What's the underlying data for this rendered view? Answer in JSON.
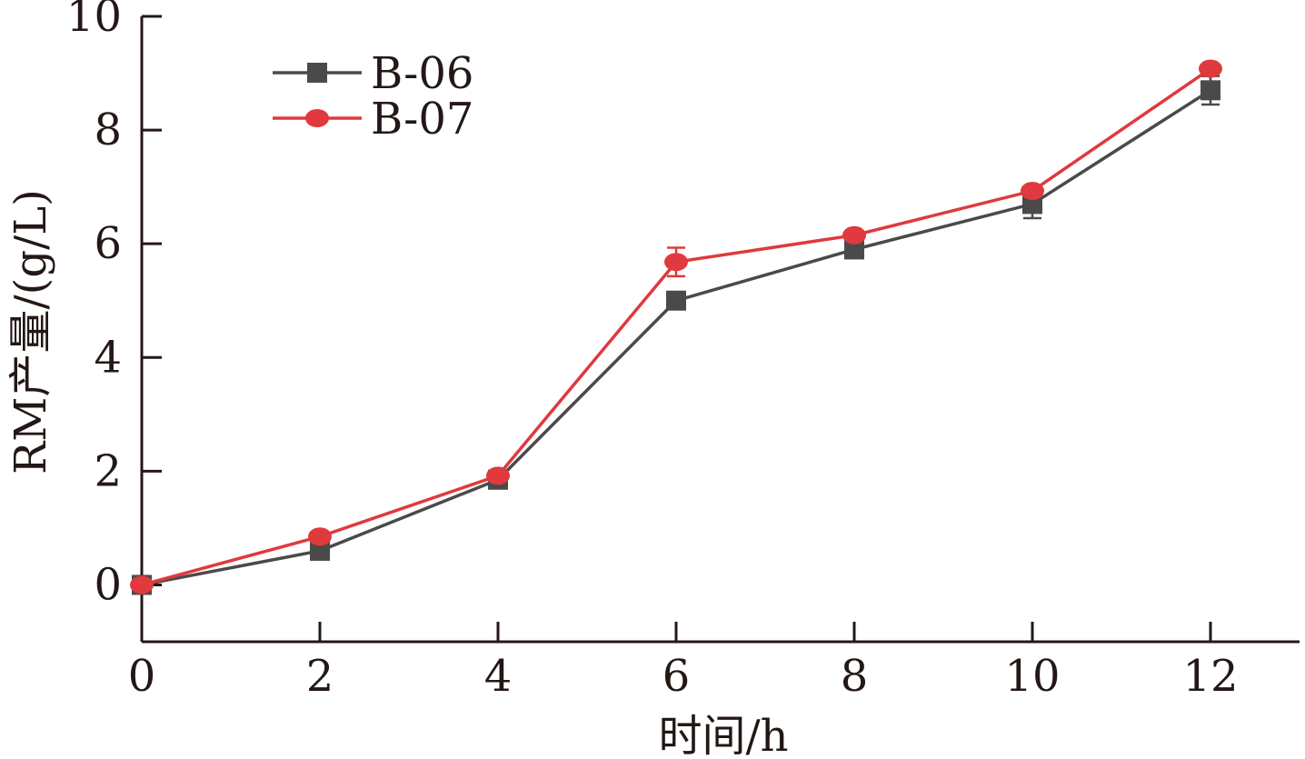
{
  "chart_data": {
    "type": "line",
    "title": "",
    "xlabel": "时间/h",
    "ylabel": "RM产量/(g/L)",
    "xlim": [
      0,
      13
    ],
    "ylim": [
      -1,
      10
    ],
    "x_ticks": [
      0,
      2,
      4,
      6,
      8,
      10,
      12
    ],
    "y_ticks": [
      0,
      2,
      4,
      6,
      8,
      10
    ],
    "grid": false,
    "legend_position": "top-left",
    "series": [
      {
        "name": "B-06",
        "color": "#4a4a4a",
        "marker": "square",
        "x": [
          0,
          2,
          4,
          6,
          8,
          10,
          12
        ],
        "y": [
          0,
          0.6,
          1.85,
          5.0,
          5.9,
          6.7,
          8.7
        ],
        "error": [
          0.02,
          0.05,
          0.05,
          0.15,
          0.08,
          0.25,
          0.25
        ]
      },
      {
        "name": "B-07",
        "color": "#e0393e",
        "marker": "circle",
        "x": [
          0,
          2,
          4,
          6,
          8,
          10,
          12
        ],
        "y": [
          0,
          0.85,
          1.92,
          5.68,
          6.15,
          6.93,
          9.08
        ],
        "error": [
          0.02,
          0.04,
          0.05,
          0.25,
          0.06,
          0.06,
          0.05
        ]
      }
    ]
  }
}
